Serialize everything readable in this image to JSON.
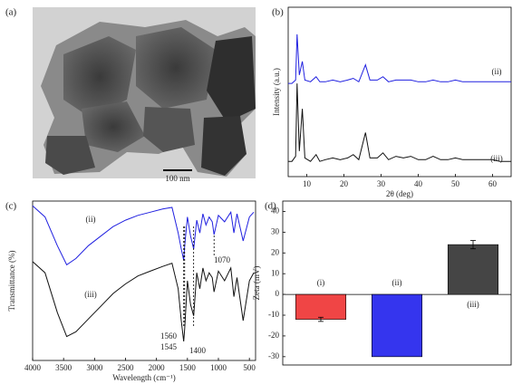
{
  "image_panel": {
    "panel_label": "(a)",
    "scale_bar": "100 nm"
  },
  "chart_data": [
    {
      "type": "line",
      "panel_label": "(b)",
      "x_label": "2θ (deg)",
      "y_label": "Intensity (a.u.)",
      "x": [
        5,
        6,
        7,
        7.4,
        8,
        8.8,
        9.5,
        11,
        12.5,
        13.5,
        15,
        17,
        19,
        21,
        22.5,
        24,
        25.8,
        27,
        29,
        30.5,
        32,
        34,
        36,
        38,
        40,
        42,
        44,
        46,
        48,
        50,
        52,
        54,
        56,
        58,
        60,
        62,
        65
      ],
      "series": [
        {
          "name": "(ii)",
          "color": "#2020e0",
          "values": [
            55,
            55,
            57,
            84,
            60,
            68,
            57,
            56,
            59,
            56,
            56,
            57,
            56,
            57,
            58,
            56,
            66,
            57,
            57,
            59,
            56,
            57,
            57,
            57,
            56,
            56,
            57,
            56,
            56,
            57,
            56,
            56,
            56,
            56,
            56,
            56,
            56
          ]
        },
        {
          "name": "(iii)",
          "color": "#111111",
          "values": [
            9,
            9,
            12,
            55,
            15,
            40,
            11,
            9,
            13,
            9,
            10,
            11,
            10,
            11,
            13,
            10,
            26,
            11,
            11,
            14,
            10,
            12,
            11,
            12,
            10,
            10,
            12,
            10,
            10,
            11,
            10,
            10,
            10,
            10,
            10,
            9,
            9
          ]
        }
      ],
      "xlim": [
        5,
        65
      ],
      "xticks": [
        10,
        20,
        30,
        40,
        50,
        60
      ],
      "ylim": [
        0,
        100
      ]
    },
    {
      "type": "line",
      "panel_label": "(c)",
      "x_label": "Wavelength (cm⁻¹)",
      "y_label": "Transmittance (%)",
      "x": [
        4000,
        3800,
        3600,
        3450,
        3300,
        3100,
        2900,
        2700,
        2500,
        2300,
        2100,
        1900,
        1750,
        1650,
        1600,
        1560,
        1545,
        1500,
        1450,
        1400,
        1350,
        1300,
        1250,
        1200,
        1150,
        1100,
        1070,
        1000,
        900,
        800,
        750,
        700,
        600,
        500,
        430
      ],
      "series": [
        {
          "name": "(ii)",
          "color": "#2020e0",
          "values": [
            97,
            90,
            72,
            60,
            64,
            72,
            78,
            84,
            88,
            91,
            93,
            95,
            96,
            80,
            70,
            63,
            72,
            90,
            78,
            70,
            88,
            80,
            92,
            85,
            90,
            87,
            79,
            91,
            87,
            93,
            80,
            92,
            75,
            90,
            93
          ]
        },
        {
          "name": "(iii)",
          "color": "#111111",
          "values": [
            62,
            55,
            30,
            15,
            18,
            26,
            34,
            42,
            48,
            53,
            56,
            59,
            61,
            45,
            25,
            12,
            20,
            50,
            35,
            28,
            55,
            45,
            58,
            50,
            55,
            52,
            43,
            56,
            50,
            58,
            40,
            52,
            25,
            50,
            55
          ]
        }
      ],
      "annotations": [
        {
          "text": "1070",
          "x": 1070
        },
        {
          "text": "1560",
          "x": 1560
        },
        {
          "text": "1545",
          "x": 1545
        },
        {
          "text": "1400",
          "x": 1400
        }
      ],
      "xlim": [
        4000,
        400
      ],
      "xticks": [
        4000,
        3500,
        3000,
        2500,
        2000,
        1500,
        1000,
        500
      ],
      "ylim": [
        0,
        100
      ]
    },
    {
      "type": "bar",
      "panel_label": "(d)",
      "y_label": "Zeta (mV)",
      "categories": [
        "(i)",
        "(ii)",
        "(iii)"
      ],
      "values": [
        -12,
        -30,
        24
      ],
      "errors": [
        1,
        null,
        2
      ],
      "colors": [
        "#f04545",
        "#3535ee",
        "#454545"
      ],
      "ylim": [
        -34,
        45
      ],
      "yticks": [
        -30,
        -20,
        -10,
        0,
        10,
        20,
        30,
        40
      ]
    }
  ]
}
